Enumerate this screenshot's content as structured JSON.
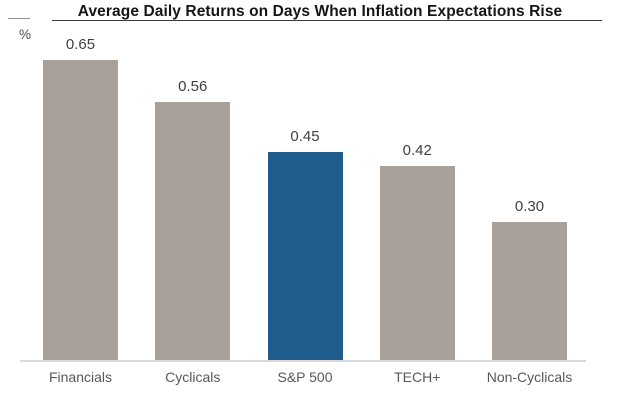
{
  "title": "Average Daily Returns on Days When Inflation Expectations Rise",
  "y_axis_unit": "%",
  "colors": {
    "bar_default": "#a8a19b",
    "bar_highlight": "#215d8c",
    "axis_line": "#d9d9d9",
    "title_rule": "#3d3d3d",
    "value_label_text": "#3f3f3f",
    "category_label_text": "#595959"
  },
  "chart_data": {
    "type": "bar",
    "title": "Average Daily Returns on Days When Inflation Expectations Rise",
    "categories": [
      "Financials",
      "Cyclicals",
      "S&P 500",
      "TECH+",
      "Non-Cyclicals"
    ],
    "values": [
      0.65,
      0.56,
      0.45,
      0.42,
      0.3
    ],
    "value_labels": [
      "0.65",
      "0.56",
      "0.45",
      "0.42",
      "0.30"
    ],
    "xlabel": "",
    "ylabel": "%",
    "ylim": [
      0,
      0.7
    ],
    "highlight_index": 2,
    "highlight_category": "S&P 500",
    "grid": false,
    "legend": "none",
    "data_labels": "above-bars"
  }
}
